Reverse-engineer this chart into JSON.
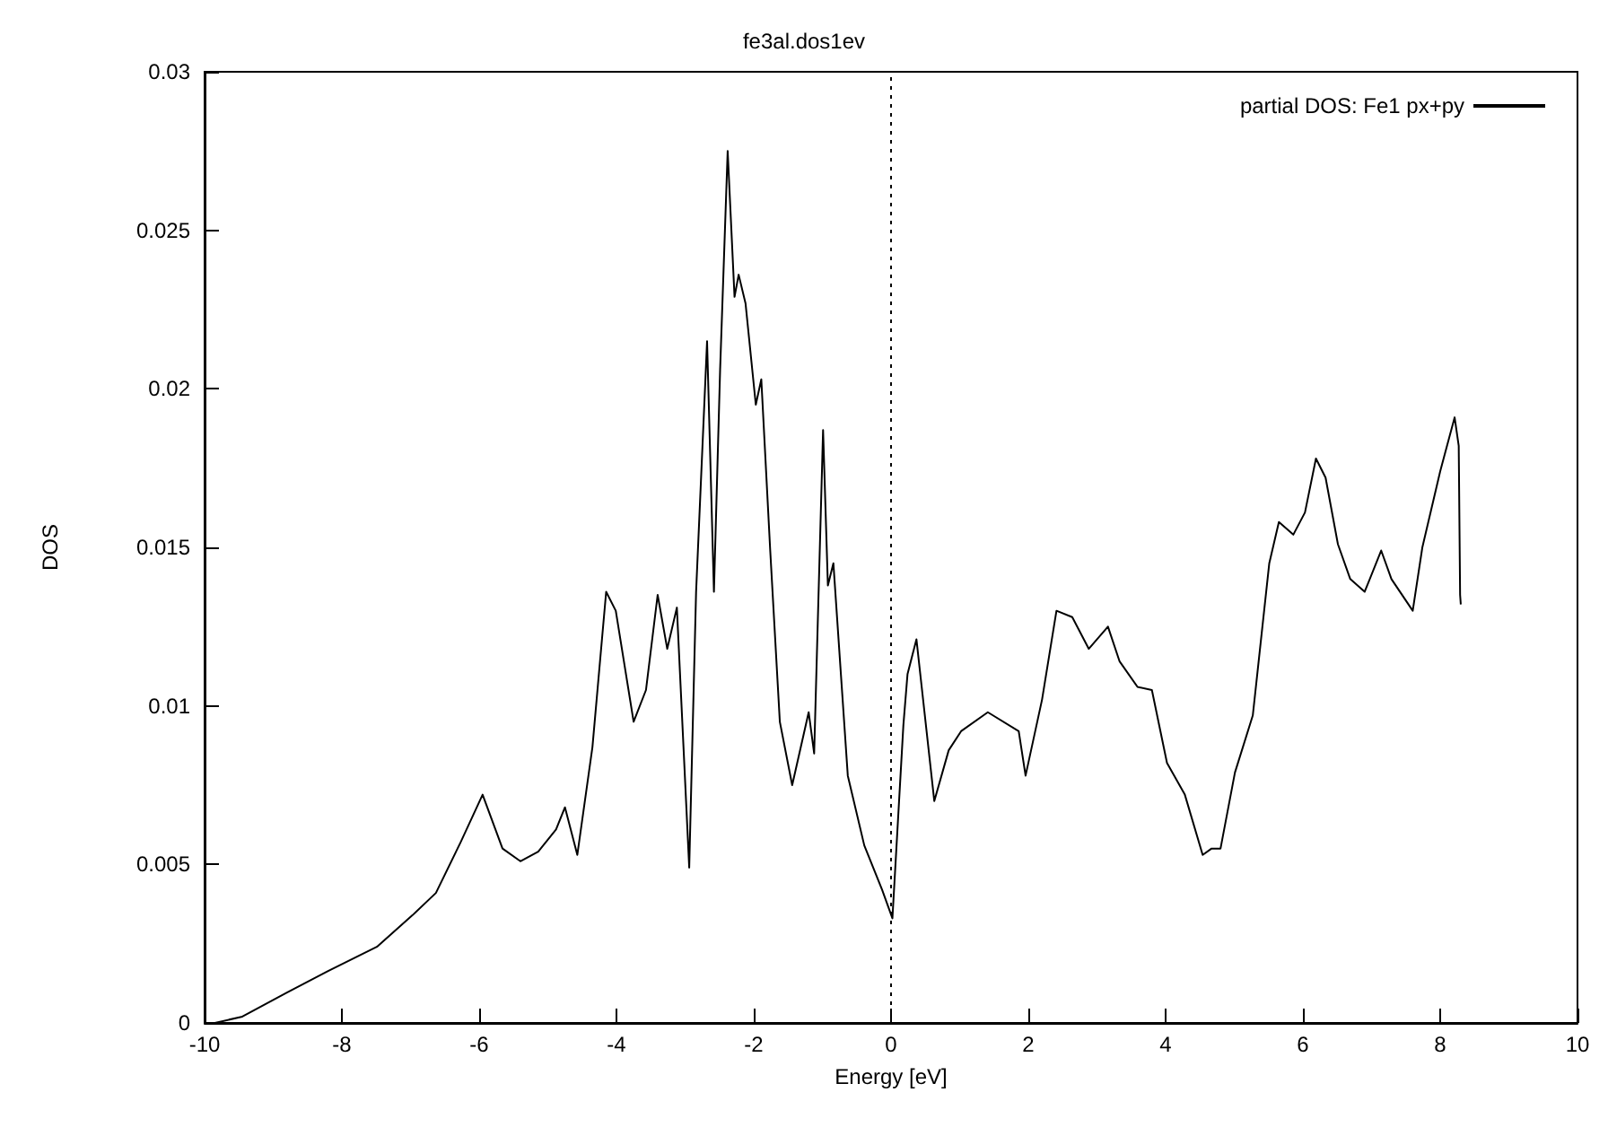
{
  "chart_data": {
    "type": "line",
    "title": "fe3al.dos1ev",
    "xlabel": "Energy [eV]",
    "ylabel": "DOS",
    "xlim": [
      -10,
      10
    ],
    "xticks": [
      -10,
      -8,
      -6,
      -4,
      -2,
      0,
      2,
      4,
      6,
      8,
      10
    ],
    "ylim": [
      0,
      0.03
    ],
    "yticks": [
      0,
      0.005,
      0.01,
      0.015,
      0.02,
      0.025,
      0.03
    ],
    "grid": false,
    "legend": "top right",
    "marker": "none",
    "line_style": "solid",
    "ref_lines": [
      {
        "axis": "x",
        "value": 0,
        "line_style": "dotted",
        "color": "#000000"
      }
    ],
    "series": [
      {
        "name": "partial DOS: Fe1 px+py",
        "color": "#000000",
        "x": [
          -9.85,
          -9.45,
          -8.8,
          -8.2,
          -7.49,
          -6.97,
          -6.63,
          -6.27,
          -5.95,
          -5.66,
          -5.4,
          -5.14,
          -4.88,
          -4.75,
          -4.57,
          -4.35,
          -4.15,
          -4.01,
          -3.75,
          -3.57,
          -3.4,
          -3.26,
          -3.12,
          -2.94,
          -2.84,
          -2.68,
          -2.58,
          -2.49,
          -2.38,
          -2.28,
          -2.22,
          -2.12,
          -1.97,
          -1.89,
          -1.76,
          -1.62,
          -1.44,
          -1.2,
          -1.12,
          -0.99,
          -0.92,
          -0.84,
          -0.63,
          -0.39,
          -0.13,
          0.02,
          0.18,
          0.24,
          0.37,
          0.63,
          0.84,
          1.02,
          1.41,
          1.86,
          1.96,
          2.2,
          2.41,
          2.64,
          2.88,
          3.16,
          3.33,
          3.59,
          3.8,
          4.02,
          4.28,
          4.54,
          4.67,
          4.8,
          5.01,
          5.27,
          5.51,
          5.65,
          5.86,
          6.03,
          6.19,
          6.33,
          6.51,
          6.69,
          6.9,
          7.14,
          7.29,
          7.6,
          7.74,
          8.0,
          8.21,
          8.27,
          8.29,
          8.3
        ],
        "values": [
          0,
          0.0002,
          0.00096,
          0.00164,
          0.0024,
          0.0034,
          0.0041,
          0.0057,
          0.0072,
          0.0055,
          0.0051,
          0.0054,
          0.0061,
          0.0068,
          0.0053,
          0.0087,
          0.0136,
          0.013,
          0.0095,
          0.0105,
          0.0135,
          0.0118,
          0.0131,
          0.0049,
          0.0136,
          0.0215,
          0.0136,
          0.0206,
          0.0275,
          0.0229,
          0.0236,
          0.0227,
          0.0195,
          0.0203,
          0.0149,
          0.0095,
          0.0075,
          0.0098,
          0.0085,
          0.0187,
          0.0138,
          0.0145,
          0.0078,
          0.0056,
          0.0042,
          0.0033,
          0.0094,
          0.011,
          0.0121,
          0.007,
          0.0086,
          0.0092,
          0.0098,
          0.0092,
          0.0078,
          0.0102,
          0.013,
          0.0128,
          0.0118,
          0.0125,
          0.0114,
          0.0106,
          0.0105,
          0.0082,
          0.0072,
          0.0053,
          0.0055,
          0.0055,
          0.0079,
          0.0097,
          0.0145,
          0.0158,
          0.0154,
          0.0161,
          0.0178,
          0.0172,
          0.0151,
          0.014,
          0.0136,
          0.0149,
          0.014,
          0.013,
          0.015,
          0.0174,
          0.0191,
          0.0182,
          0.0135,
          0.0132
        ]
      }
    ]
  }
}
